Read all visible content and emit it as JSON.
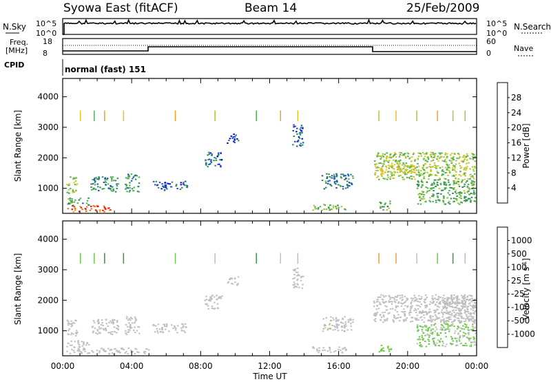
{
  "header": {
    "station": "Syowa East (fitACF)",
    "beam": "Beam 14",
    "date": "25/Feb/2009"
  },
  "top_panel": {
    "left_label": "N.Sky",
    "right_label": "N.Search",
    "left_ticks": [
      "10^5",
      "10^0"
    ],
    "right_ticks": [
      "10^5",
      "10^0"
    ]
  },
  "freq_panel": {
    "left_label_1": "Freq.",
    "left_label_2": "[MHz]",
    "right_label": "Nave",
    "left_ticks": [
      "18",
      "8"
    ],
    "right_ticks": [
      "60",
      "0"
    ]
  },
  "cpid": {
    "label": "CPID",
    "value": "normal (fast) 151"
  },
  "colors": {
    "power_scale": [
      "#0000ff",
      "#1f4fbf",
      "#2e8b57",
      "#4cb050",
      "#a6c83a",
      "#e8c41a",
      "#f0a020",
      "#f07020",
      "#ff0000"
    ],
    "velocity_scale": [
      "#2a3fb0",
      "#2e62a8",
      "#3f8f4f",
      "#6ec84a",
      "#c0c0c0",
      "#bdbdbd",
      "#f0a030",
      "#f07020",
      "#ff0000"
    ],
    "bg_gray": "#bebebe"
  },
  "chart_data": [
    {
      "type": "heatmap",
      "panel": "power",
      "title": "",
      "xlabel": "",
      "ylabel": "Slant Range [km]",
      "x_ticks": [
        "00:00",
        "04:00",
        "08:00",
        "12:00",
        "16:00",
        "20:00",
        "00:00"
      ],
      "y_ticks": [
        "1000",
        "2000",
        "3000",
        "4000"
      ],
      "ylim": [
        180,
        4600
      ],
      "colorbar": {
        "label": "Power [dB]",
        "ticks": [
          "4",
          "8",
          "12",
          "16",
          "20",
          "24",
          "28"
        ],
        "range": [
          0,
          30
        ]
      },
      "echo_regions": [
        {
          "t": [
            0.2,
            2.8
          ],
          "r": [
            250,
            450
          ],
          "v": 26
        },
        {
          "t": [
            0.2,
            1.5
          ],
          "r": [
            450,
            700
          ],
          "v": 10
        },
        {
          "t": [
            0.2,
            0.8
          ],
          "r": [
            850,
            1400
          ],
          "v": 14
        },
        {
          "t": [
            1.6,
            3.2
          ],
          "r": [
            900,
            1400
          ],
          "v": 9
        },
        {
          "t": [
            3.6,
            4.4
          ],
          "r": [
            900,
            1500
          ],
          "v": 10
        },
        {
          "t": [
            5.2,
            7.2
          ],
          "r": [
            950,
            1250
          ],
          "v": 6
        },
        {
          "t": [
            9.5,
            10.2
          ],
          "r": [
            2500,
            2800
          ],
          "v": 6
        },
        {
          "t": [
            8.2,
            9.2
          ],
          "r": [
            1700,
            2200
          ],
          "v": 6
        },
        {
          "t": [
            13.3,
            13.9
          ],
          "r": [
            2400,
            3100
          ],
          "v": 6
        },
        {
          "t": [
            15.0,
            16.8
          ],
          "r": [
            1000,
            1500
          ],
          "v": 8
        },
        {
          "t": [
            14.4,
            16.4
          ],
          "r": [
            300,
            500
          ],
          "v": 12
        },
        {
          "t": [
            18.0,
            23.9
          ],
          "r": [
            1300,
            2200
          ],
          "v": 14
        },
        {
          "t": [
            18.0,
            20.5
          ],
          "r": [
            1500,
            1800
          ],
          "v": 18
        },
        {
          "t": [
            20.5,
            23.9
          ],
          "r": [
            500,
            1300
          ],
          "v": 11
        },
        {
          "t": [
            18.3,
            19.0
          ],
          "r": [
            300,
            600
          ],
          "v": 12
        }
      ]
    },
    {
      "type": "heatmap",
      "panel": "velocity",
      "title": "",
      "xlabel": "Time UT",
      "ylabel": "Slant Range [km]",
      "x_ticks": [
        "00:00",
        "04:00",
        "08:00",
        "12:00",
        "16:00",
        "20:00",
        "00:00"
      ],
      "y_ticks": [
        "1000",
        "2000",
        "3000",
        "4000"
      ],
      "ylim": [
        180,
        4600
      ],
      "colorbar": {
        "label": "Velocity [m s^-1]",
        "ticks": [
          "1000",
          "500",
          "100",
          "25",
          "-25",
          "-100",
          "-500",
          "-1000"
        ],
        "range": [
          -1200,
          1200
        ]
      },
      "echo_regions": [
        {
          "t": [
            0.2,
            5.0
          ],
          "r": [
            250,
            450
          ],
          "v": -150
        },
        {
          "t": [
            0.2,
            1.5
          ],
          "r": [
            450,
            700
          ],
          "v": -60
        },
        {
          "t": [
            0.2,
            0.8
          ],
          "r": [
            850,
            1400
          ],
          "v": 0
        },
        {
          "t": [
            1.6,
            3.2
          ],
          "r": [
            900,
            1400
          ],
          "v": 0
        },
        {
          "t": [
            3.6,
            4.4
          ],
          "r": [
            900,
            1500
          ],
          "v": 0
        },
        {
          "t": [
            5.2,
            7.2
          ],
          "r": [
            950,
            1250
          ],
          "v": 0
        },
        {
          "t": [
            9.5,
            10.2
          ],
          "r": [
            2500,
            2800
          ],
          "v": 50
        },
        {
          "t": [
            8.2,
            9.2
          ],
          "r": [
            1700,
            2200
          ],
          "v": 0
        },
        {
          "t": [
            13.3,
            13.9
          ],
          "r": [
            2400,
            3100
          ],
          "v": 0
        },
        {
          "t": [
            15.0,
            16.8
          ],
          "r": [
            1000,
            1500
          ],
          "v": 80
        },
        {
          "t": [
            14.4,
            16.4
          ],
          "r": [
            300,
            500
          ],
          "v": -120
        },
        {
          "t": [
            18.0,
            23.9
          ],
          "r": [
            1300,
            2200
          ],
          "v": 0
        },
        {
          "t": [
            20.5,
            23.9
          ],
          "r": [
            500,
            1300
          ],
          "v": 150
        },
        {
          "t": [
            22.0,
            23.9
          ],
          "r": [
            1300,
            2200
          ],
          "v": -200
        },
        {
          "t": [
            18.3,
            19.0
          ],
          "r": [
            300,
            600
          ],
          "v": 200
        }
      ]
    }
  ],
  "labels": {
    "time_ut": "Time UT"
  }
}
